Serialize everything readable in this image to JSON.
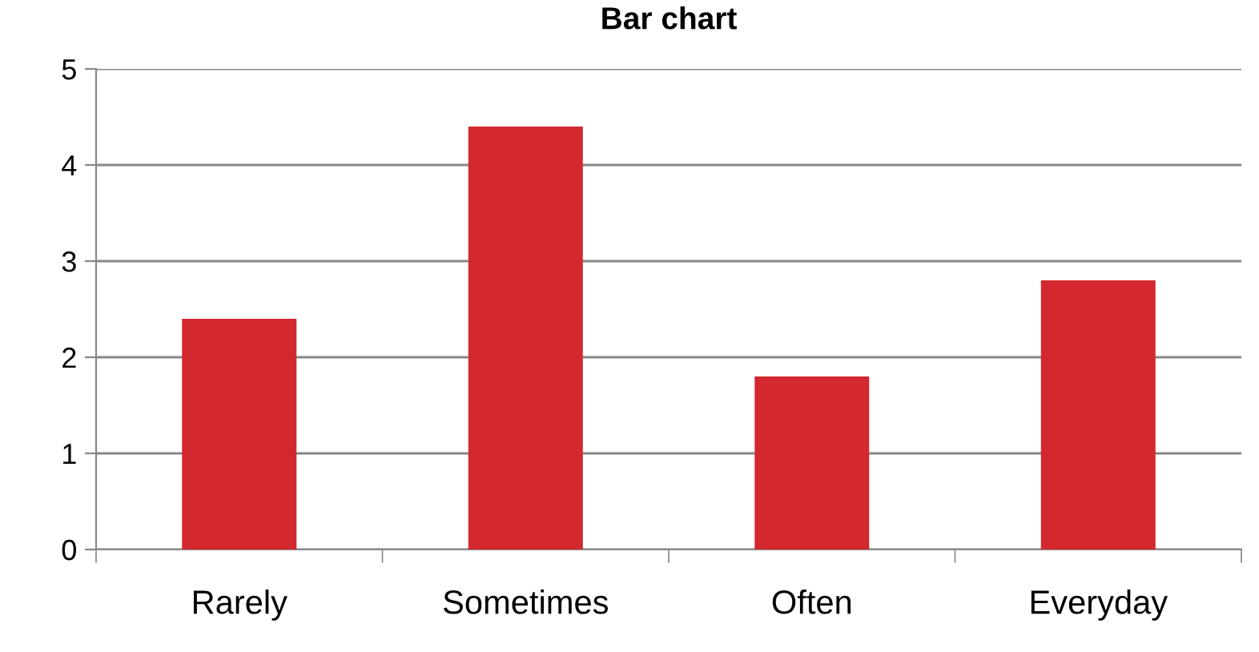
{
  "chart_data": {
    "type": "bar",
    "title": "Bar chart",
    "categories": [
      "Rarely",
      "Sometimes",
      "Often",
      "Everyday"
    ],
    "values": [
      2.4,
      4.4,
      1.8,
      2.8
    ],
    "color": "#d2282e",
    "ylim": [
      0,
      5
    ],
    "yticks": [
      0,
      1,
      2,
      3,
      4,
      5
    ],
    "grid": "y",
    "legend": false
  }
}
